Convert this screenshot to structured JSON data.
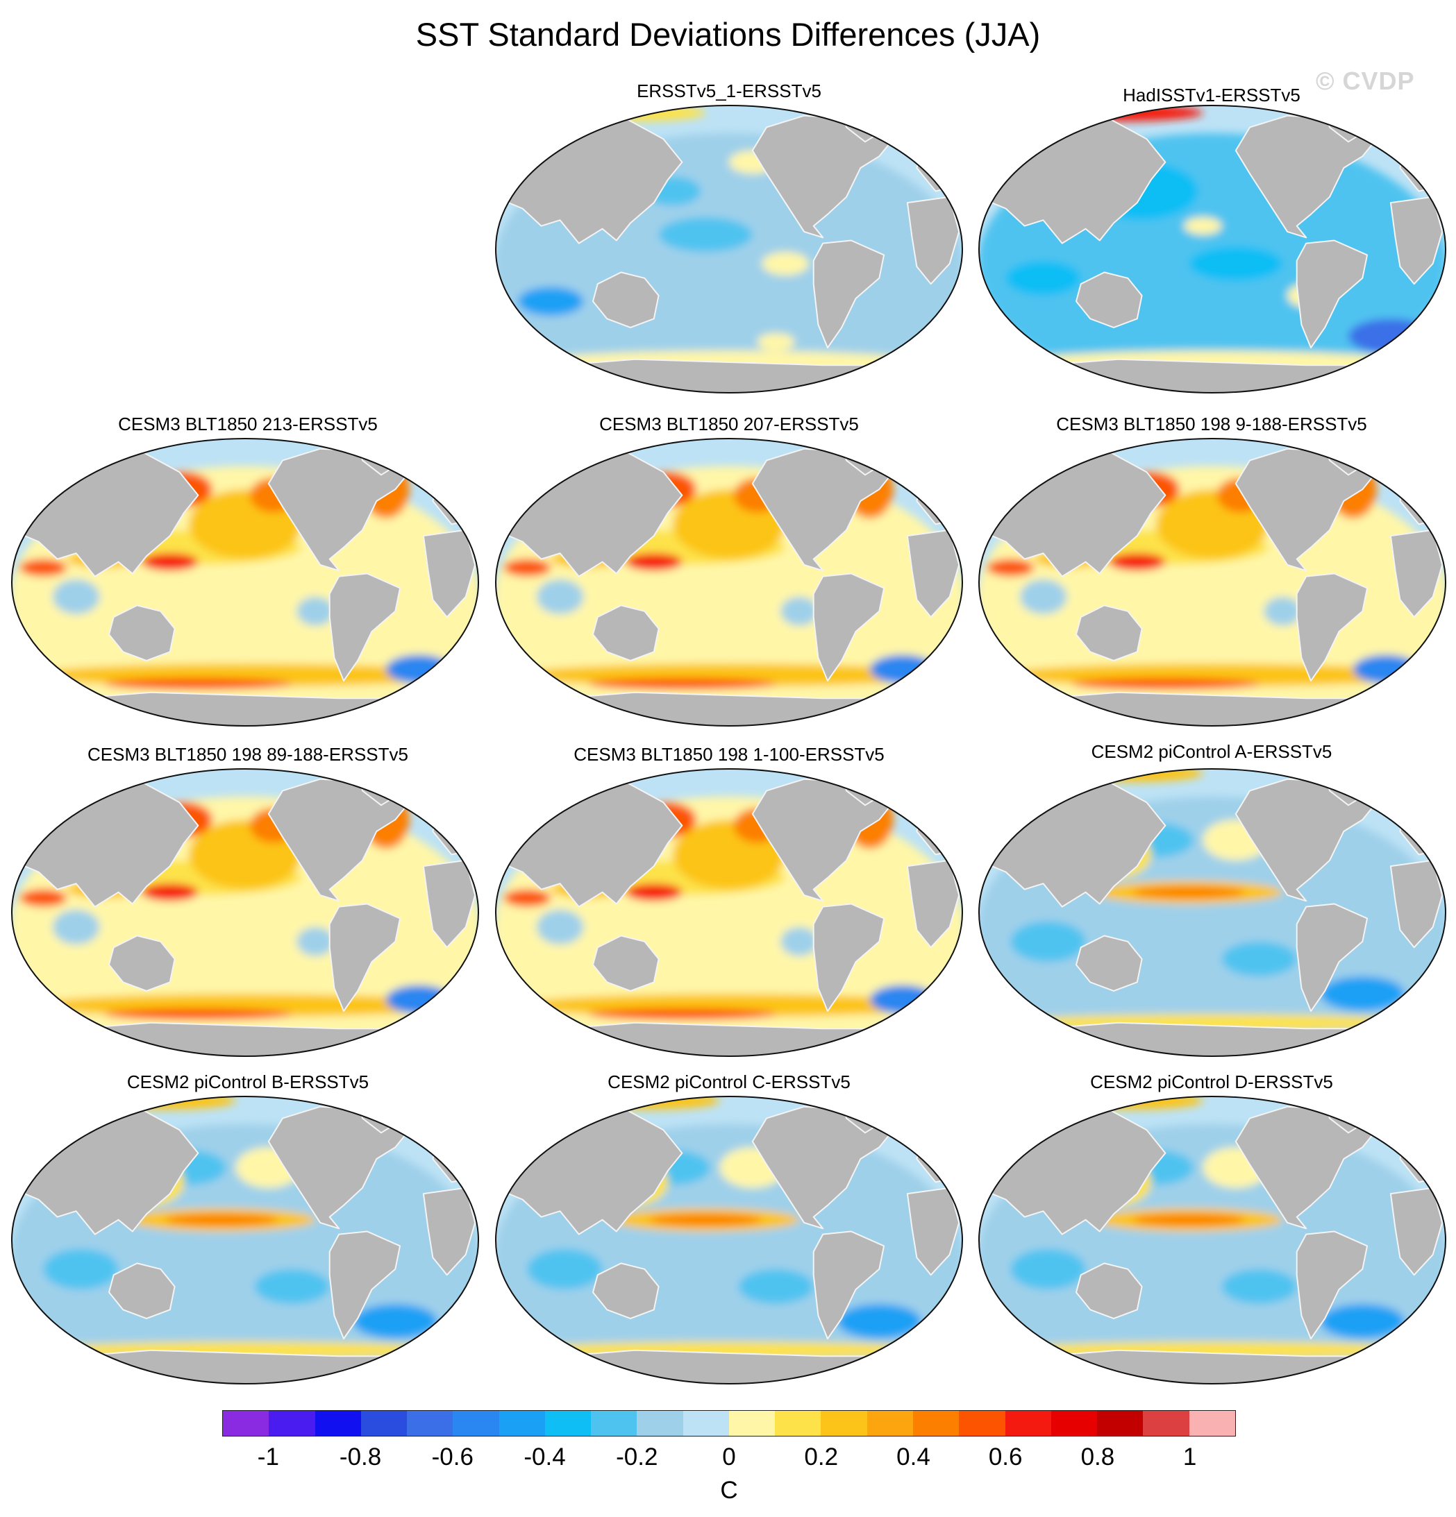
{
  "title": "SST Standard Deviations Differences (JJA)",
  "watermark": "© CVDP",
  "colors": {
    "land": "#b7b7b7",
    "ocean_base": "#bde2f5",
    "outline": "#111111"
  },
  "panels": [
    {
      "label": "ERSSTv5_1-ERSSTv5",
      "style": "obs1"
    },
    {
      "label": "HadISSTv1-ERSSTv5",
      "style": "obs2"
    },
    {
      "label": "CESM3 BLT1850 213-ERSSTv5",
      "style": "warm"
    },
    {
      "label": "CESM3 BLT1850 207-ERSSTv5",
      "style": "warm"
    },
    {
      "label": "CESM3 BLT1850 198 9-188-ERSSTv5",
      "style": "warm"
    },
    {
      "label": "CESM3 BLT1850 198 89-188-ERSSTv5",
      "style": "warm"
    },
    {
      "label": "CESM3 BLT1850 198 1-100-ERSSTv5",
      "style": "warm"
    },
    {
      "label": "CESM2 piControl A-ERSSTv5",
      "style": "cool"
    },
    {
      "label": "CESM2 piControl B-ERSSTv5",
      "style": "cool"
    },
    {
      "label": "CESM2 piControl C-ERSSTv5",
      "style": "cool"
    },
    {
      "label": "CESM2 piControl D-ERSSTv5",
      "style": "cool"
    }
  ],
  "colorbar": {
    "unit": "C",
    "colors": [
      "#8a2be2",
      "#4b1cf0",
      "#1010f0",
      "#2a4de0",
      "#3a6fe8",
      "#2a86f0",
      "#1aa0f5",
      "#0ebef5",
      "#4fc3f0",
      "#9fd0ea",
      "#bde2f5",
      "#fff6a8",
      "#fde24a",
      "#fcc419",
      "#fca50f",
      "#fc7f00",
      "#fc5400",
      "#f51a10",
      "#e60000",
      "#c20000",
      "#dc4040",
      "#f9b1b1"
    ],
    "ticks": [
      {
        "label": "-1",
        "value": -1
      },
      {
        "label": "-0.8",
        "value": -0.8
      },
      {
        "label": "-0.6",
        "value": -0.6
      },
      {
        "label": "-0.4",
        "value": -0.4
      },
      {
        "label": "-0.2",
        "value": -0.2
      },
      {
        "label": "0",
        "value": 0
      },
      {
        "label": "0.2",
        "value": 0.2
      },
      {
        "label": "0.4",
        "value": 0.4
      },
      {
        "label": "0.6",
        "value": 0.6
      },
      {
        "label": "0.8",
        "value": 0.8
      },
      {
        "label": "1",
        "value": 1
      }
    ]
  }
}
